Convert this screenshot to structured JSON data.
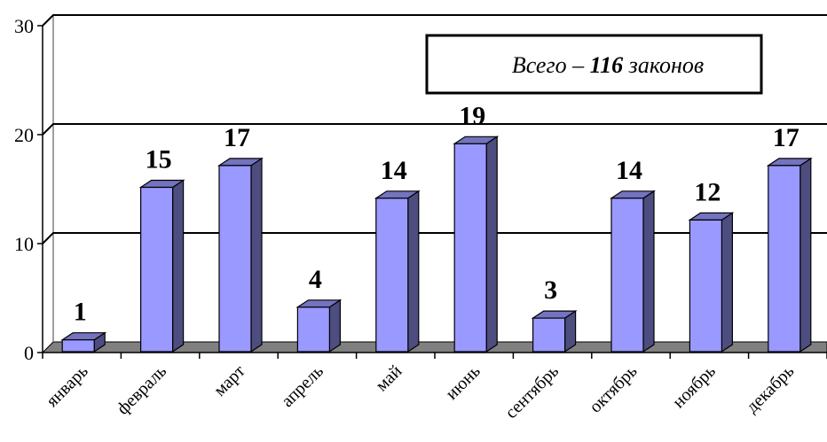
{
  "chart_data": {
    "type": "bar",
    "categories": [
      "январь",
      "февраль",
      "март",
      "апрель",
      "май",
      "июнь",
      "сентябрь",
      "октябрь",
      "ноябрь",
      "декабрь"
    ],
    "values": [
      1,
      15,
      17,
      4,
      14,
      19,
      3,
      14,
      12,
      17
    ],
    "ylim": [
      0,
      30
    ],
    "yticks": [
      0,
      10,
      20,
      30
    ],
    "grid": true,
    "bar_color": "#9999ff",
    "annotation": {
      "prefix": "Всего – ",
      "total": "116",
      "suffix": " законов"
    }
  }
}
